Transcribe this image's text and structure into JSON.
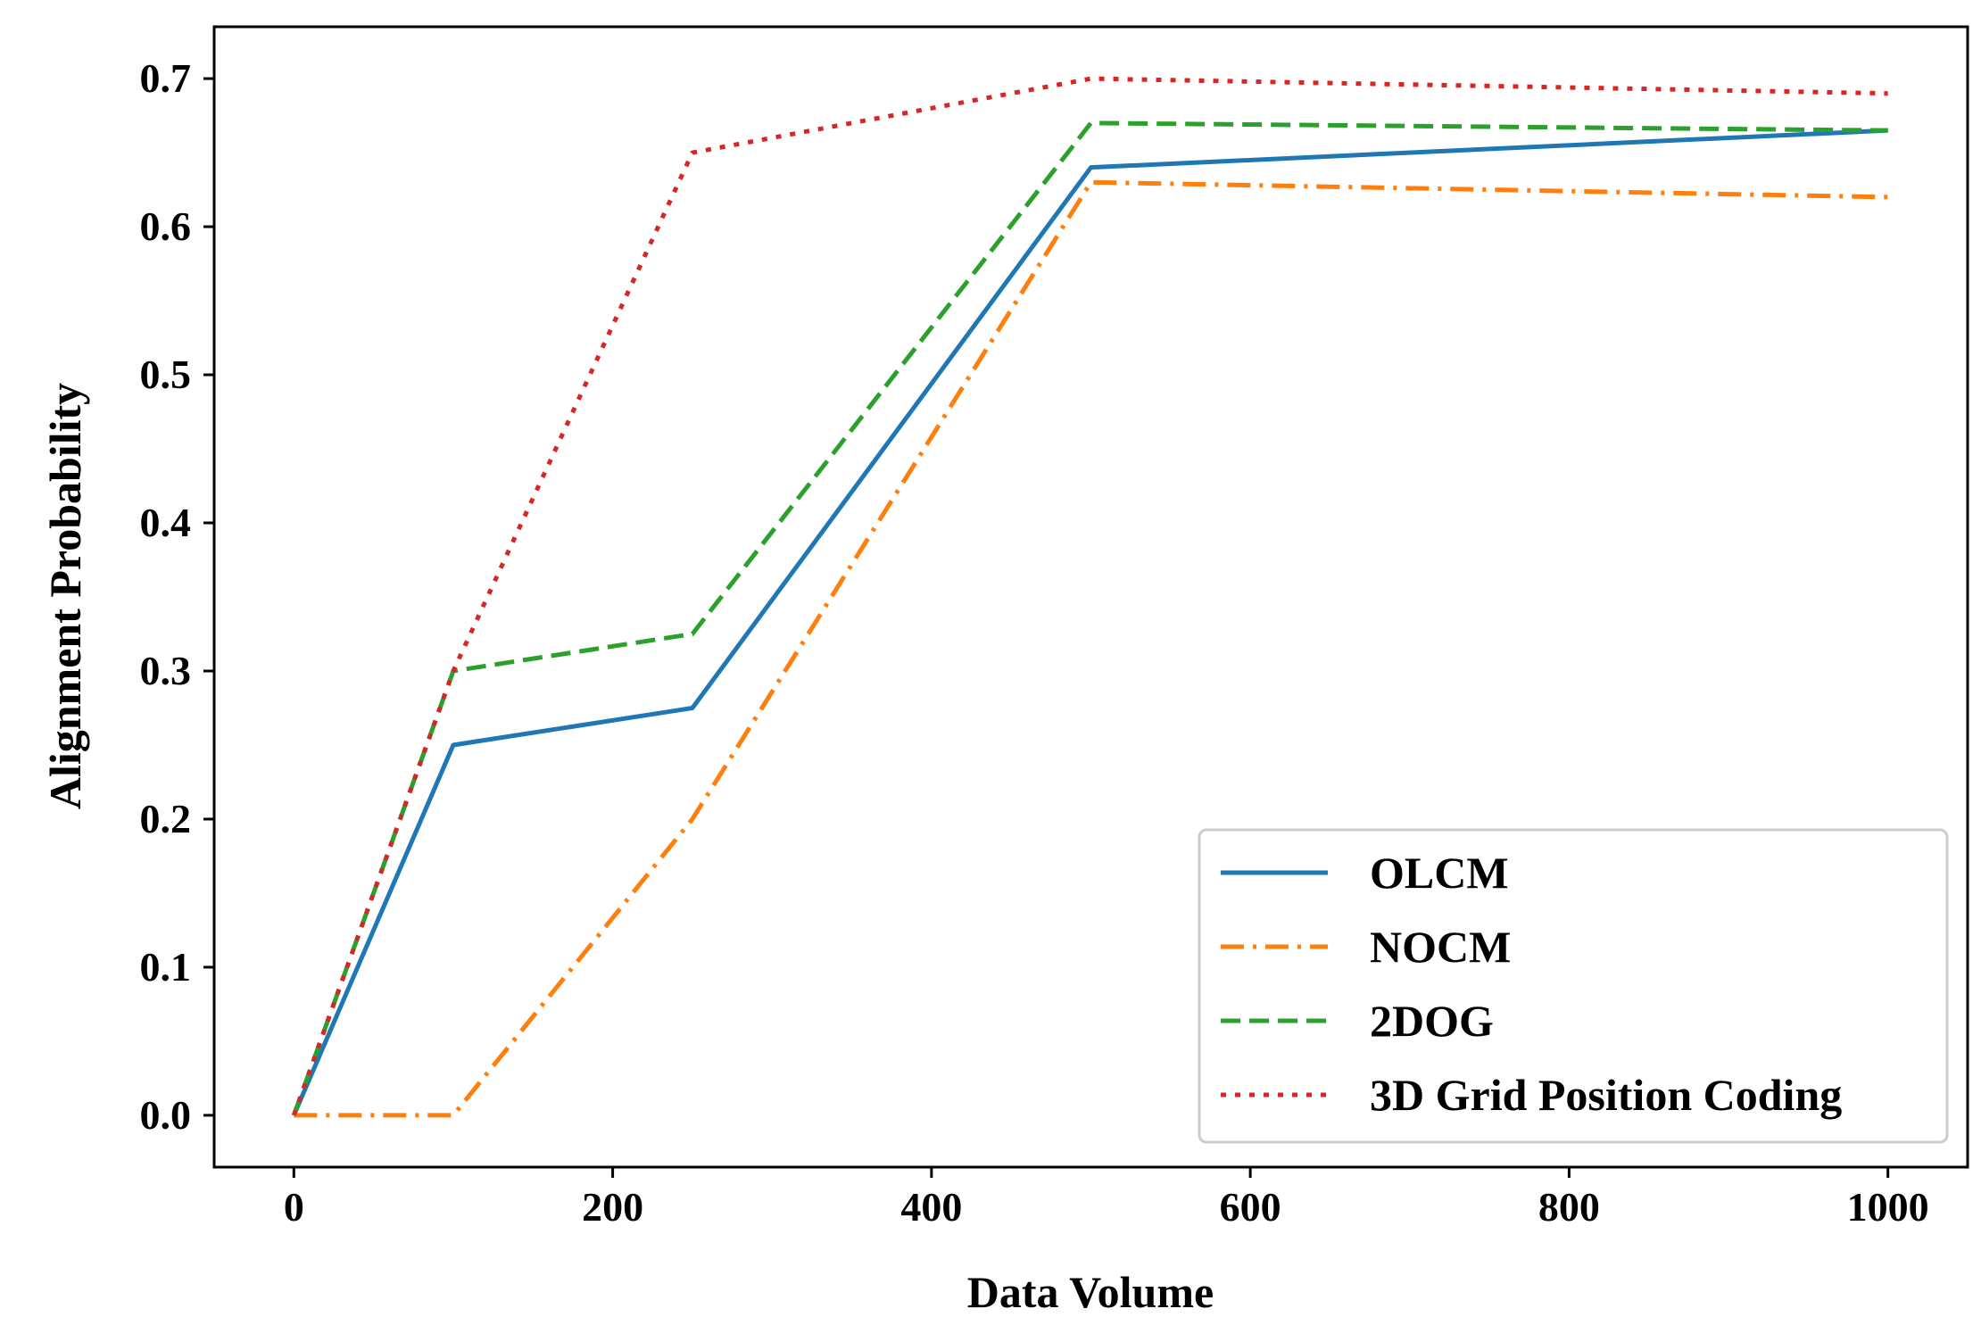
{
  "chart_data": {
    "type": "line",
    "title": "",
    "xlabel": "Data Volume",
    "ylabel": "Alignment Probability",
    "x": [
      0,
      100,
      250,
      500,
      1000
    ],
    "xlim": [
      -50,
      1050
    ],
    "ylim": [
      -0.035,
      0.735
    ],
    "xticks": [
      0,
      200,
      400,
      600,
      800,
      1000
    ],
    "xtick_labels": [
      "0",
      "200",
      "400",
      "600",
      "800",
      "1000"
    ],
    "yticks": [
      0.0,
      0.1,
      0.2,
      0.3,
      0.4,
      0.5,
      0.6,
      0.7
    ],
    "ytick_labels": [
      "0.0",
      "0.1",
      "0.2",
      "0.3",
      "0.4",
      "0.5",
      "0.6",
      "0.7"
    ],
    "grid": false,
    "legend_position": "lower-right",
    "series": [
      {
        "name": "OLCM",
        "values": [
          0.0,
          0.25,
          0.275,
          0.64,
          0.665
        ],
        "color": "#1f77b4",
        "style": "solid"
      },
      {
        "name": "NOCM",
        "values": [
          0.0,
          0.0,
          0.2,
          0.63,
          0.62
        ],
        "color": "#ff7f0e",
        "style": "dashdot"
      },
      {
        "name": "2DOG",
        "values": [
          0.0,
          0.3,
          0.325,
          0.67,
          0.665
        ],
        "color": "#2ca02c",
        "style": "dashed"
      },
      {
        "name": "3D Grid Position Coding",
        "values": [
          0.0,
          0.3,
          0.65,
          0.7,
          0.69
        ],
        "color": "#d62728",
        "style": "dotted"
      }
    ]
  }
}
